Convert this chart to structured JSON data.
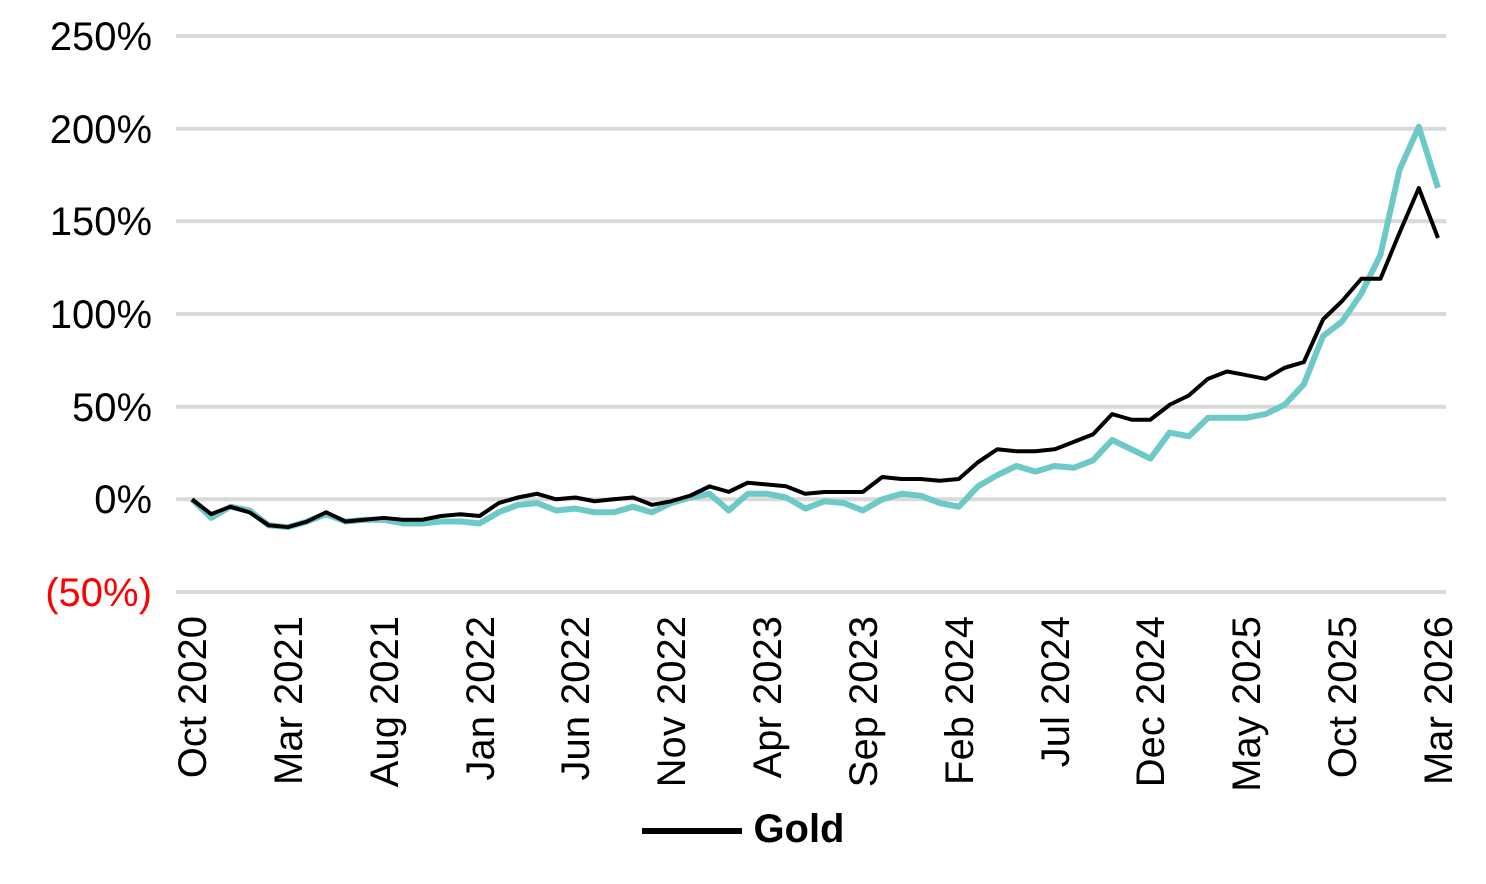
{
  "chart_data": {
    "type": "line",
    "categories": [
      "Oct 2020",
      null,
      null,
      null,
      null,
      "Mar 2021",
      null,
      null,
      null,
      null,
      "Aug 2021",
      null,
      null,
      null,
      null,
      "Jan 2022",
      null,
      null,
      null,
      null,
      "Jun 2022",
      null,
      null,
      null,
      null,
      "Nov 2022",
      null,
      null,
      null,
      null,
      "Apr 2023",
      null,
      null,
      null,
      null,
      "Sep 2023",
      null,
      null,
      null,
      null,
      "Feb 2024",
      null,
      null,
      null,
      null,
      "Jul 2024",
      null,
      null,
      null,
      null,
      "Dec 2024",
      null,
      null,
      null,
      null,
      "May 2025",
      null,
      null,
      null,
      null,
      "Oct 2025",
      null,
      null,
      null,
      null,
      "Mar 2026"
    ],
    "series": [
      {
        "color": "#6cc9c6",
        "values": [
          0,
          -10,
          -4,
          -6,
          -14,
          -15,
          -12,
          -8,
          -12,
          -11,
          -11,
          -13,
          -13,
          -12,
          -12,
          -13,
          -7,
          -3,
          -2,
          -6,
          -5,
          -7,
          -7,
          -4,
          -7,
          -2,
          1,
          3,
          -6,
          3,
          3,
          1,
          -5,
          -1,
          -2,
          -6,
          0,
          3,
          2,
          -2,
          -4,
          7,
          13,
          18,
          15,
          18,
          17,
          21,
          32,
          27,
          22,
          36,
          34,
          44,
          44,
          44,
          46,
          51,
          62,
          88,
          96,
          111,
          132,
          178,
          201,
          168
        ]
      },
      {
        "name": "Gold",
        "color": "#000000",
        "values": [
          0,
          -8,
          -4,
          -7,
          -14,
          -15,
          -12,
          -7,
          -12,
          -11,
          -10,
          -11,
          -11,
          -9,
          -8,
          -9,
          -2,
          1,
          3,
          0,
          1,
          -1,
          0,
          1,
          -3,
          -1,
          2,
          7,
          4,
          9,
          8,
          7,
          3,
          4,
          4,
          4,
          12,
          11,
          11,
          10,
          11,
          20,
          27,
          26,
          26,
          27,
          31,
          35,
          46,
          43,
          43,
          51,
          56,
          65,
          69,
          67,
          65,
          71,
          74,
          97,
          107,
          119,
          119,
          144,
          168,
          141
        ]
      }
    ],
    "ylim": [
      -50,
      250
    ],
    "yticks": [
      {
        "value": -50,
        "label": "(50%)"
      },
      {
        "value": 0,
        "label": "0%"
      },
      {
        "value": 50,
        "label": "50%"
      },
      {
        "value": 100,
        "label": "100%"
      },
      {
        "value": 150,
        "label": "150%"
      },
      {
        "value": 200,
        "label": "200%"
      },
      {
        "value": 250,
        "label": "250%"
      }
    ],
    "grid": "y",
    "legend": "bottom",
    "marker": "none",
    "line_style": "solid"
  }
}
